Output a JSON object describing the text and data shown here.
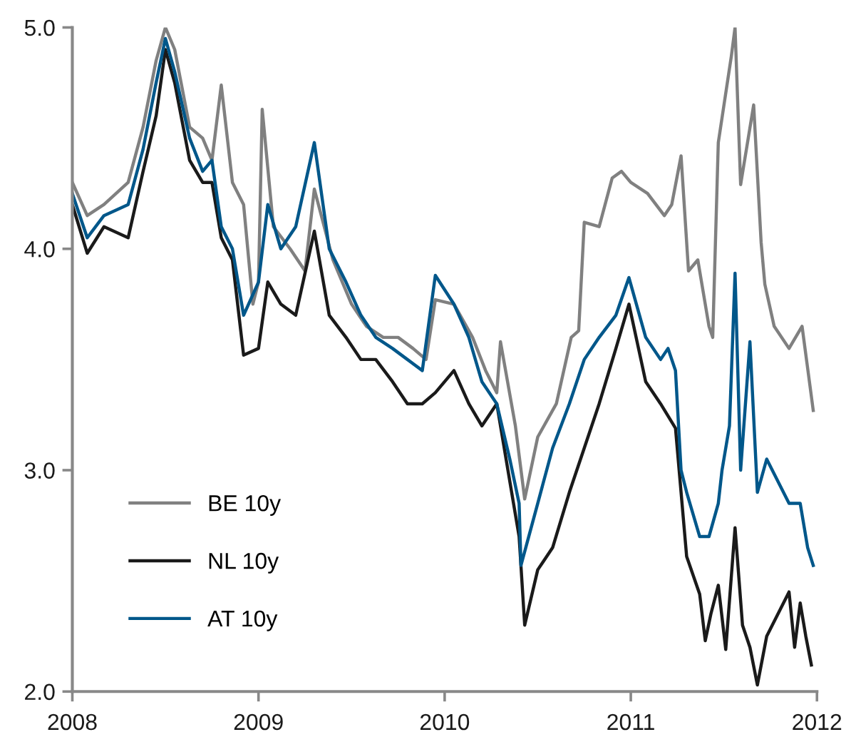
{
  "chart_data": {
    "type": "line",
    "xlim": [
      2008,
      2012
    ],
    "ylim": [
      2.0,
      5.0
    ],
    "xticks": [
      2008,
      2009,
      2010,
      2011,
      2012
    ],
    "yticks": [
      {
        "value": 2.0,
        "label": "2.0"
      },
      {
        "value": 3.0,
        "label": "3.0"
      },
      {
        "value": 4.0,
        "label": "4.0"
      },
      {
        "value": 5.0,
        "label": "5.0"
      }
    ],
    "grid": false,
    "legend": "bottom left",
    "marker": "none",
    "line_style": "solid",
    "series": [
      {
        "name": "BE 10y",
        "color": "#808080",
        "x": [
          2008.0,
          2008.08,
          2008.17,
          2008.3,
          2008.38,
          2008.45,
          2008.5,
          2008.55,
          2008.63,
          2008.7,
          2008.75,
          2008.8,
          2008.86,
          2008.92,
          2008.97,
          2009.0,
          2009.02,
          2009.08,
          2009.17,
          2009.25,
          2009.3,
          2009.4,
          2009.5,
          2009.58,
          2009.67,
          2009.75,
          2009.83,
          2009.9,
          2009.95,
          2010.05,
          2010.15,
          2010.22,
          2010.28,
          2010.3,
          2010.38,
          2010.43,
          2010.5,
          2010.6,
          2010.68,
          2010.72,
          2010.75,
          2010.83,
          2010.9,
          2010.95,
          2011.0,
          2011.09,
          2011.18,
          2011.22,
          2011.27,
          2011.31,
          2011.36,
          2011.42,
          2011.44,
          2011.47,
          2011.54,
          2011.56,
          2011.59,
          2011.66,
          2011.7,
          2011.72,
          2011.77,
          2011.85,
          2011.92,
          2011.98
        ],
        "values": [
          4.3,
          4.15,
          4.2,
          4.3,
          4.55,
          4.85,
          5.0,
          4.9,
          4.55,
          4.5,
          4.4,
          4.74,
          4.3,
          4.2,
          3.75,
          3.85,
          4.63,
          4.1,
          4.0,
          3.9,
          4.27,
          3.95,
          3.75,
          3.65,
          3.6,
          3.6,
          3.55,
          3.5,
          3.77,
          3.75,
          3.6,
          3.45,
          3.35,
          3.58,
          3.2,
          2.87,
          3.15,
          3.3,
          3.6,
          3.63,
          4.12,
          4.1,
          4.32,
          4.35,
          4.3,
          4.25,
          4.15,
          4.2,
          4.42,
          3.9,
          3.95,
          3.65,
          3.6,
          4.48,
          4.87,
          5.0,
          4.29,
          4.65,
          4.03,
          3.84,
          3.65,
          3.55,
          3.65,
          3.27
        ]
      },
      {
        "name": "NL 10y",
        "color": "#1a1a1a",
        "x": [
          2008.0,
          2008.08,
          2008.17,
          2008.3,
          2008.38,
          2008.45,
          2008.5,
          2008.55,
          2008.63,
          2008.7,
          2008.75,
          2008.8,
          2008.86,
          2008.92,
          2009.0,
          2009.05,
          2009.12,
          2009.2,
          2009.3,
          2009.38,
          2009.47,
          2009.55,
          2009.63,
          2009.72,
          2009.8,
          2009.88,
          2009.95,
          2010.05,
          2010.13,
          2010.2,
          2010.28,
          2010.35,
          2010.4,
          2010.43,
          2010.5,
          2010.58,
          2010.67,
          2010.75,
          2010.83,
          2010.92,
          2010.99,
          2011.08,
          2011.16,
          2011.24,
          2011.3,
          2011.37,
          2011.4,
          2011.43,
          2011.47,
          2011.51,
          2011.56,
          2011.6,
          2011.64,
          2011.68,
          2011.73,
          2011.79,
          2011.85,
          2011.88,
          2011.91,
          2011.94,
          2011.97
        ],
        "values": [
          4.2,
          3.98,
          4.1,
          4.05,
          4.35,
          4.6,
          4.9,
          4.75,
          4.4,
          4.3,
          4.3,
          4.05,
          3.95,
          3.52,
          3.55,
          3.85,
          3.75,
          3.7,
          4.08,
          3.7,
          3.6,
          3.5,
          3.5,
          3.4,
          3.3,
          3.3,
          3.35,
          3.45,
          3.3,
          3.2,
          3.3,
          2.95,
          2.7,
          2.3,
          2.55,
          2.65,
          2.9,
          3.1,
          3.3,
          3.55,
          3.75,
          3.4,
          3.3,
          3.19,
          2.61,
          2.44,
          2.23,
          2.35,
          2.48,
          2.19,
          2.74,
          2.3,
          2.2,
          2.03,
          2.25,
          2.35,
          2.45,
          2.2,
          2.4,
          2.25,
          2.12
        ]
      },
      {
        "name": "AT 10y",
        "color": "#00578a",
        "x": [
          2008.0,
          2008.08,
          2008.17,
          2008.3,
          2008.38,
          2008.45,
          2008.5,
          2008.55,
          2008.63,
          2008.7,
          2008.75,
          2008.8,
          2008.86,
          2008.92,
          2009.0,
          2009.05,
          2009.12,
          2009.2,
          2009.3,
          2009.38,
          2009.47,
          2009.55,
          2009.63,
          2009.72,
          2009.8,
          2009.88,
          2009.95,
          2010.05,
          2010.13,
          2010.2,
          2010.28,
          2010.35,
          2010.4,
          2010.41,
          2010.5,
          2010.58,
          2010.67,
          2010.75,
          2010.83,
          2010.92,
          2010.99,
          2011.08,
          2011.16,
          2011.2,
          2011.24,
          2011.27,
          2011.3,
          2011.37,
          2011.42,
          2011.47,
          2011.49,
          2011.53,
          2011.56,
          2011.59,
          2011.64,
          2011.68,
          2011.73,
          2011.79,
          2011.85,
          2011.91,
          2011.95,
          2011.98
        ],
        "values": [
          4.25,
          4.05,
          4.15,
          4.2,
          4.45,
          4.75,
          4.95,
          4.8,
          4.5,
          4.35,
          4.4,
          4.1,
          4.0,
          3.7,
          3.85,
          4.2,
          4.0,
          4.1,
          4.48,
          4.0,
          3.85,
          3.7,
          3.6,
          3.55,
          3.5,
          3.45,
          3.88,
          3.75,
          3.6,
          3.4,
          3.3,
          3.05,
          2.85,
          2.57,
          2.85,
          3.1,
          3.3,
          3.5,
          3.6,
          3.7,
          3.87,
          3.6,
          3.5,
          3.55,
          3.45,
          3.0,
          2.9,
          2.7,
          2.7,
          2.85,
          3.0,
          3.2,
          3.89,
          3.0,
          3.58,
          2.9,
          3.05,
          2.95,
          2.85,
          2.85,
          2.65,
          2.57
        ]
      }
    ]
  }
}
